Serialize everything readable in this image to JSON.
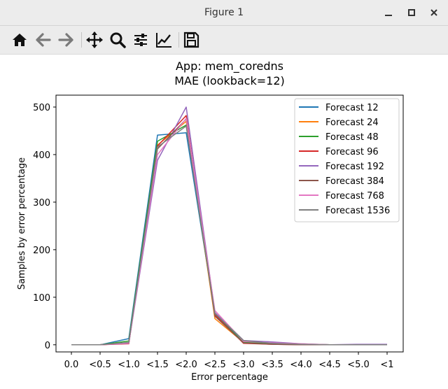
{
  "window": {
    "title": "Figure 1",
    "controls": {
      "minimize_icon": "minimize-icon",
      "maximize_icon": "maximize-icon",
      "close_icon": "close-icon"
    }
  },
  "toolbar": {
    "items": [
      "home-icon",
      "back-arrow-icon",
      "forward-arrow-icon",
      "pan-icon",
      "zoom-icon",
      "configure-subplots-icon",
      "edit-axis-icon",
      "save-icon"
    ]
  },
  "chart_data": {
    "type": "line",
    "title_lines": [
      "App: mem_coredns",
      "MAE (lookback=12)"
    ],
    "xlabel": "Error percentage",
    "ylabel": "Samples by error percentage",
    "categories": [
      "0.0",
      "<0.5",
      "<1.0",
      "<1.5",
      "<2.0",
      "<2.5",
      "<3.0",
      "<3.5",
      "<4.0",
      "<4.5",
      "<5.0",
      "<1"
    ],
    "yticks": [
      0,
      100,
      200,
      300,
      400,
      500
    ],
    "ylim": [
      -15,
      525
    ],
    "legend_position": "top-right",
    "grid": false,
    "series": [
      {
        "name": "Forecast 12",
        "color": "#1f77b4",
        "values": [
          0,
          0,
          13,
          441,
          446,
          65,
          8,
          3,
          1,
          0,
          0,
          0
        ]
      },
      {
        "name": "Forecast 24",
        "color": "#ff7f0e",
        "values": [
          0,
          0,
          3,
          420,
          470,
          55,
          5,
          2,
          1,
          0,
          0,
          0
        ]
      },
      {
        "name": "Forecast 48",
        "color": "#2ca02c",
        "values": [
          0,
          0,
          8,
          428,
          462,
          63,
          5,
          2,
          1,
          0,
          0,
          0
        ]
      },
      {
        "name": "Forecast 96",
        "color": "#d62728",
        "values": [
          0,
          0,
          2,
          418,
          482,
          63,
          3,
          1,
          0,
          0,
          0,
          0
        ]
      },
      {
        "name": "Forecast 192",
        "color": "#9467bd",
        "values": [
          0,
          0,
          3,
          388,
          500,
          68,
          9,
          6,
          2,
          0,
          1,
          1
        ]
      },
      {
        "name": "Forecast 384",
        "color": "#8c564b",
        "values": [
          0,
          0,
          4,
          412,
          475,
          60,
          4,
          1,
          0,
          0,
          0,
          0
        ]
      },
      {
        "name": "Forecast 768",
        "color": "#e377c2",
        "values": [
          0,
          0,
          3,
          400,
          476,
          72,
          7,
          4,
          2,
          0,
          0,
          0
        ]
      },
      {
        "name": "Forecast 1536",
        "color": "#7f7f7f",
        "values": [
          0,
          0,
          5,
          416,
          460,
          66,
          9,
          3,
          1,
          0,
          0,
          0
        ]
      }
    ]
  }
}
